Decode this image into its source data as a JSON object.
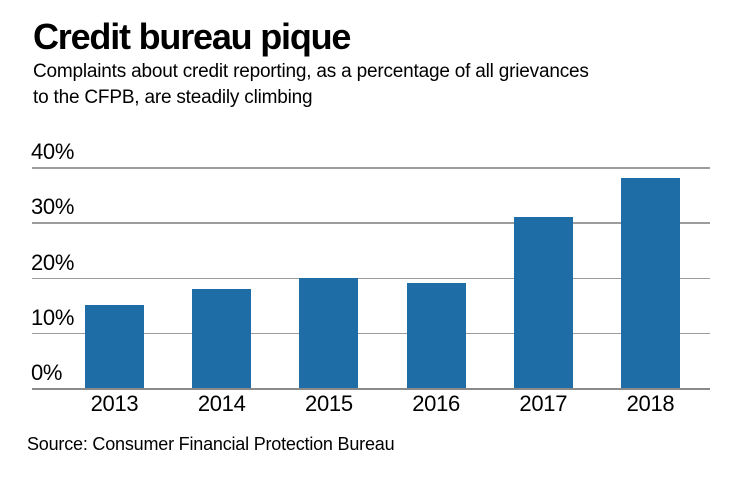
{
  "header": {
    "title": "Credit bureau pique",
    "subtitle_lines": [
      "Complaints about credit reporting, as a percentage of all grievances",
      "to the CFPB, are steadily climbing"
    ]
  },
  "source_line": "Source: Consumer Financial Protection Bureau",
  "colors": {
    "bar": "#1f6da6",
    "gridline": "#9c9c9c",
    "axis": "#8a8a8a",
    "text": "#000000",
    "background": "#ffffff"
  },
  "chart_data": {
    "type": "bar",
    "title": "Credit bureau pique",
    "subtitle": "Complaints about credit reporting, as a percentage of all grievances to the CFPB, are steadily climbing",
    "categories": [
      "2013",
      "2014",
      "2015",
      "2016",
      "2017",
      "2018"
    ],
    "values": [
      15,
      18,
      20,
      19,
      31,
      38
    ],
    "unit": "%",
    "xlabel": "",
    "ylabel": "",
    "ylim": [
      0,
      40
    ],
    "y_ticks": [
      "40%",
      "30%",
      "20%",
      "10%",
      "0%"
    ],
    "grid": true,
    "legend_position": "none",
    "source": "Source: Consumer Financial Protection Bureau"
  }
}
